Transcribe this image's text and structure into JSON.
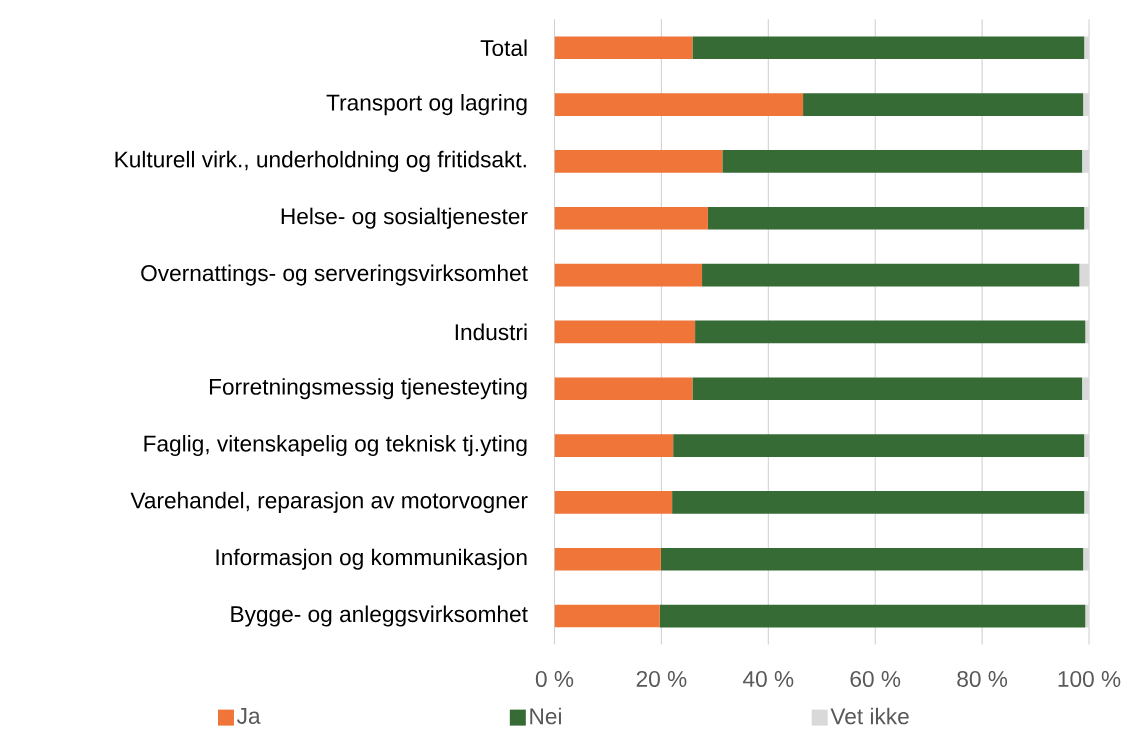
{
  "chart_data": {
    "type": "bar",
    "orientation": "horizontal",
    "stacked": true,
    "categories": [
      "Total",
      "Transport og lagring",
      "Kulturell virk., underholdning og fritidsakt.",
      "Helse- og sosialtjenester",
      "Overnattings- og serveringsvirksomhet",
      "Industri",
      "Forretningsmessig tjenesteyting",
      "Faglig, vitenskapelig og teknisk tj.yting",
      "Varehandel, reparasjon av motorvogner",
      "Informasjon og kommunikasjon",
      "Bygge- og anleggsvirksomhet"
    ],
    "series": [
      {
        "name": "Ja",
        "color": "#ef7539",
        "values": [
          25.8,
          46.5,
          31.4,
          28.7,
          27.6,
          26.3,
          25.8,
          22.2,
          22.0,
          19.9,
          19.7
        ]
      },
      {
        "name": "Nei",
        "color": "#376b35",
        "values": [
          73.3,
          52.4,
          67.3,
          70.4,
          70.6,
          73.0,
          72.9,
          76.9,
          77.1,
          79.0,
          79.6
        ]
      },
      {
        "name": "Vet ikke",
        "color": "#d9d9d9",
        "values": [
          0.9,
          1.1,
          1.3,
          0.9,
          1.8,
          0.7,
          1.3,
          0.9,
          0.9,
          1.1,
          0.7
        ]
      }
    ],
    "xlim": [
      0,
      100
    ],
    "xticks": [
      {
        "value": 0,
        "label": "0 %"
      },
      {
        "value": 20,
        "label": "20 %"
      },
      {
        "value": 40,
        "label": "40 %"
      },
      {
        "value": 60,
        "label": "60 %"
      },
      {
        "value": 80,
        "label": "80 %"
      },
      {
        "value": 100,
        "label": "100 %"
      }
    ],
    "grid": "x",
    "legend": "bottom"
  }
}
